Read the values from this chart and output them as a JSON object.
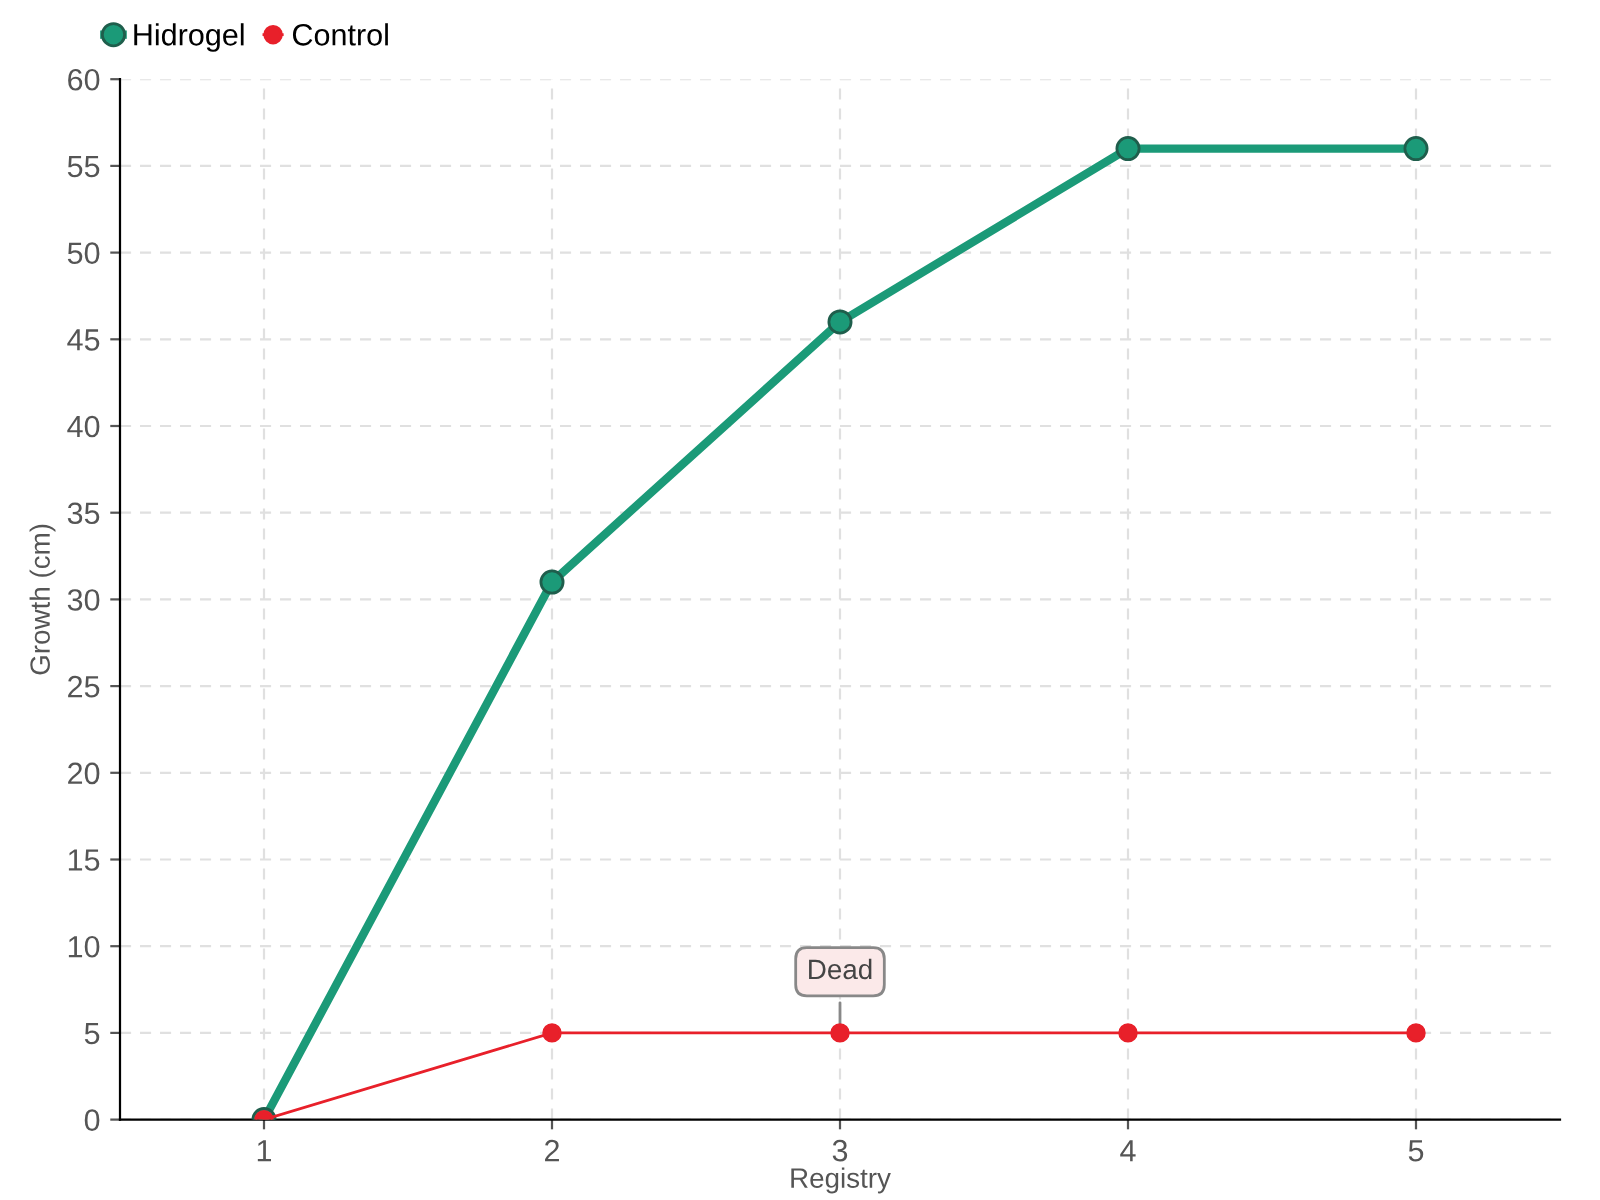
{
  "chart_data": {
    "type": "line",
    "xlabel": "Registry",
    "ylabel": "Growth (cm)",
    "categories": [
      "1",
      "2",
      "3",
      "4",
      "5"
    ],
    "series": [
      {
        "name": "Hidrogel",
        "color": "#1b9a78",
        "values": [
          0,
          31,
          46,
          56,
          56
        ]
      },
      {
        "name": "Control",
        "color": "#e8202a",
        "values": [
          0,
          5,
          5,
          5,
          5
        ]
      }
    ],
    "annotations": [
      {
        "text": "Dead",
        "x": "3",
        "y": 5
      }
    ],
    "ylim": [
      0,
      60
    ],
    "yticks": [
      0,
      5,
      10,
      15,
      20,
      25,
      30,
      35,
      40,
      45,
      50,
      55,
      60
    ],
    "grid": true,
    "legend": "top left",
    "marker": "circle",
    "line_style": "solid"
  }
}
